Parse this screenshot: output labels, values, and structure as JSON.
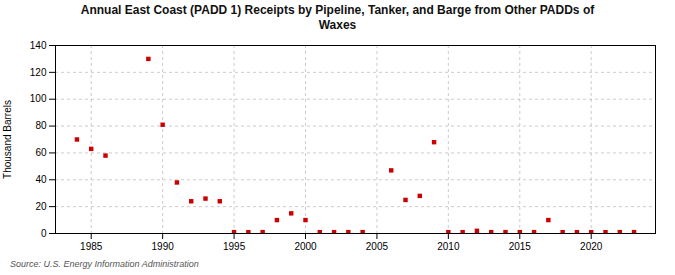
{
  "chart_data": {
    "type": "scatter",
    "title": "Annual East Coast (PADD 1) Receipts by Pipeline, Tanker, and Barge from Other PADDs of\nWaxes",
    "ylabel": "Thousand Barrels",
    "annotations": [
      "Source: U.S. Energy Information Administration"
    ],
    "x": [
      1984,
      1985,
      1986,
      1989,
      1990,
      1991,
      1992,
      1993,
      1994,
      1995,
      1996,
      1997,
      1998,
      1999,
      2000,
      2001,
      2002,
      2003,
      2004,
      2006,
      2007,
      2008,
      2009,
      2010,
      2011,
      2012,
      2013,
      2014,
      2015,
      2016,
      2017,
      2018,
      2019,
      2020,
      2021,
      2022,
      2023
    ],
    "values": [
      70,
      63,
      58,
      130,
      81,
      38,
      24,
      26,
      24,
      1,
      1,
      1,
      10,
      15,
      10,
      1,
      1,
      1,
      1,
      47,
      25,
      28,
      68,
      1,
      1,
      2,
      1,
      1,
      1,
      1,
      10,
      1,
      1,
      1,
      1,
      1,
      1
    ],
    "color": "#cc0000",
    "marker": "square",
    "xlim": [
      1982.5,
      2024.5
    ],
    "ylim": [
      0,
      140
    ],
    "xticks": [
      1985,
      1990,
      1995,
      2000,
      2005,
      2010,
      2015,
      2020
    ],
    "yticks": [
      0,
      20,
      40,
      60,
      80,
      100,
      120,
      140
    ],
    "grid": true
  }
}
